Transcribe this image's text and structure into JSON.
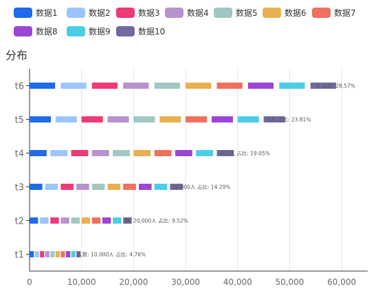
{
  "chart_data": {
    "type": "bar",
    "orientation": "horizontal",
    "title": "分布",
    "categories": [
      "t1",
      "t2",
      "t3",
      "t4",
      "t5",
      "t6"
    ],
    "series": [
      {
        "name": "数据1",
        "color": "#1f6bea"
      },
      {
        "name": "数据2",
        "color": "#9cc5ff"
      },
      {
        "name": "数据3",
        "color": "#ef3979"
      },
      {
        "name": "数据4",
        "color": "#b693cf"
      },
      {
        "name": "数据5",
        "color": "#9fc8c1"
      },
      {
        "name": "数据6",
        "color": "#e8b050"
      },
      {
        "name": "数据7",
        "color": "#ef705f"
      },
      {
        "name": "数据8",
        "color": "#9c45d6"
      },
      {
        "name": "数据9",
        "color": "#4ccde6"
      },
      {
        "name": "数据10",
        "color": "#706b9e"
      }
    ],
    "totals": [
      10000,
      20000,
      30000,
      40000,
      50000,
      60000
    ],
    "data_labels": [
      "人数: 10,000人 占比: 4.76%",
      "数: 20,000人 占比: 9.52%",
      "30,000人 占比: 14.29%",
      "000人 占比: 19.05%",
      "0人 占比: 23.81%",
      "人 占比: 28.57%"
    ],
    "xlim": [
      0,
      65000
    ],
    "xticks": [
      0,
      10000,
      20000,
      30000,
      40000,
      50000,
      60000
    ],
    "xtick_labels": [
      "0",
      "10,000",
      "20,000",
      "30,000",
      "40,000",
      "50,000",
      "60,000"
    ],
    "grid": true,
    "legend_position": "top"
  }
}
